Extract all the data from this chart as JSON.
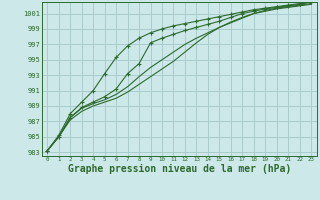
{
  "bg_color": "#cce8e8",
  "grid_color": "#aacccc",
  "line_color": "#2d6a2d",
  "xlabel": "Graphe pression niveau de la mer (hPa)",
  "xlim": [
    -0.5,
    23.5
  ],
  "ylim": [
    982.5,
    1002.5
  ],
  "yticks": [
    983,
    985,
    987,
    989,
    991,
    993,
    995,
    997,
    999,
    1001
  ],
  "xticks": [
    0,
    1,
    2,
    3,
    4,
    5,
    6,
    7,
    8,
    9,
    10,
    11,
    12,
    13,
    14,
    15,
    16,
    17,
    18,
    19,
    20,
    21,
    22,
    23
  ],
  "series": [
    {
      "y": [
        983.2,
        985.0,
        987.2,
        988.3,
        989.0,
        989.5,
        990.0,
        990.8,
        991.8,
        992.8,
        993.8,
        994.8,
        996.0,
        997.2,
        998.3,
        999.2,
        999.9,
        1000.5,
        1001.0,
        1001.3,
        1001.6,
        1001.8,
        1002.0,
        1002.2
      ],
      "marker": false
    },
    {
      "y": [
        983.2,
        985.0,
        987.5,
        988.7,
        989.3,
        989.8,
        990.5,
        991.5,
        992.8,
        994.0,
        995.0,
        996.0,
        997.0,
        997.8,
        998.5,
        999.2,
        999.8,
        1000.4,
        1001.0,
        1001.4,
        1001.7,
        1001.9,
        1002.1,
        1002.3
      ],
      "marker": false
    },
    {
      "y": [
        983.2,
        985.0,
        987.5,
        988.8,
        989.5,
        990.2,
        991.2,
        993.2,
        994.5,
        997.2,
        997.8,
        998.3,
        998.8,
        999.2,
        999.6,
        1000.0,
        1000.5,
        1001.0,
        1001.3,
        1001.6,
        1001.8,
        1002.0,
        1002.2,
        1002.5
      ],
      "marker": true
    },
    {
      "y": [
        983.2,
        985.2,
        988.0,
        989.5,
        991.0,
        993.2,
        995.3,
        996.8,
        997.8,
        998.5,
        999.0,
        999.4,
        999.7,
        1000.0,
        1000.3,
        1000.6,
        1000.9,
        1001.2,
        1001.5,
        1001.7,
        1001.9,
        1002.1,
        1002.3,
        1002.5
      ],
      "marker": true
    }
  ]
}
